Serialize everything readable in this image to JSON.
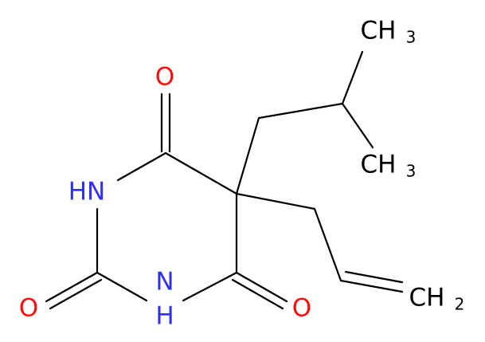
{
  "atoms": [
    {
      "label": "O"
    },
    {
      "label": "HN"
    },
    {
      "label": "O"
    },
    {
      "label": "N",
      "h": "H"
    },
    {
      "label": "O"
    },
    {
      "label": "CH",
      "subscript": "3"
    },
    {
      "label": "CH",
      "subscript": "3"
    },
    {
      "label": "CH",
      "subscript": "2"
    }
  ]
}
